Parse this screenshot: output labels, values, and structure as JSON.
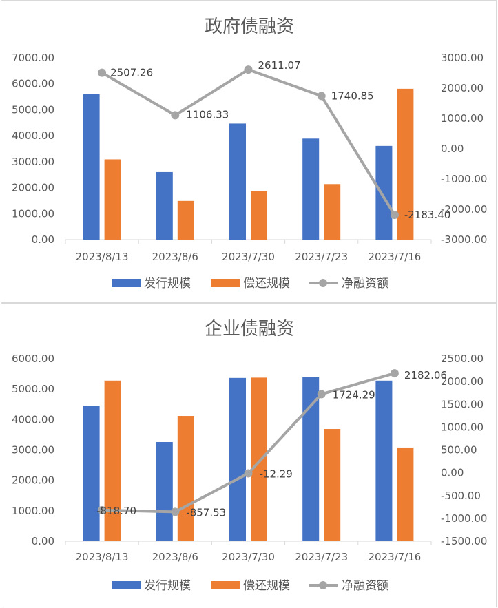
{
  "colors": {
    "issuance": "#4472c4",
    "repayment": "#ed7d31",
    "net": "#a5a5a5",
    "axis": "#d9d9d9",
    "text": "#595959"
  },
  "chart_data": [
    {
      "type": "bar",
      "title": "政府债融资",
      "categories": [
        "2023/8/13",
        "2023/8/6",
        "2023/7/30",
        "2023/7/23",
        "2023/7/16"
      ],
      "series": [
        {
          "name": "发行规模",
          "axis": "left",
          "kind": "bar",
          "values": [
            5600,
            2600,
            4470,
            3890,
            3610
          ]
        },
        {
          "name": "偿还规模",
          "axis": "left",
          "kind": "bar",
          "values": [
            3090,
            1490,
            1860,
            2140,
            5810
          ]
        },
        {
          "name": "净融资额",
          "axis": "right",
          "kind": "line",
          "values": [
            2507.26,
            1106.33,
            2611.07,
            1740.85,
            -2183.4
          ]
        }
      ],
      "line_labels": [
        "2507.26",
        "1106.33",
        "2611.07",
        "1740.85",
        "-2183.40"
      ],
      "ylim_left": [
        0,
        7000
      ],
      "ylim_right": [
        -3000,
        3000
      ],
      "yticks_left": [
        "7000.00",
        "6000.00",
        "5000.00",
        "4000.00",
        "3000.00",
        "2000.00",
        "1000.00",
        "0.00"
      ],
      "yticks_right": [
        "3000.00",
        "2000.00",
        "1000.00",
        "0.00",
        "-1000.00",
        "-2000.00",
        "-3000.00"
      ],
      "legend": [
        "发行规模",
        "偿还规模",
        "净融资额"
      ],
      "legend_position": "bottom",
      "grid": false
    },
    {
      "type": "bar",
      "title": "企业债融资",
      "categories": [
        "2023/8/13",
        "2023/8/6",
        "2023/7/30",
        "2023/7/23",
        "2023/7/16"
      ],
      "series": [
        {
          "name": "发行规模",
          "axis": "left",
          "kind": "bar",
          "values": [
            4460,
            3260,
            5370,
            5410,
            5280
          ]
        },
        {
          "name": "偿还规模",
          "axis": "left",
          "kind": "bar",
          "values": [
            5280,
            4120,
            5380,
            3690,
            3080
          ]
        },
        {
          "name": "净融资额",
          "axis": "right",
          "kind": "line",
          "values": [
            -818.7,
            -857.53,
            -12.29,
            1724.29,
            2182.06
          ]
        }
      ],
      "line_labels": [
        "-818.70",
        "-857.53",
        "-12.29",
        "1724.29",
        "2182.06"
      ],
      "ylim_left": [
        0,
        6000
      ],
      "ylim_right": [
        -1500,
        2500
      ],
      "yticks_left": [
        "6000.00",
        "5000.00",
        "4000.00",
        "3000.00",
        "2000.00",
        "1000.00",
        "0.00"
      ],
      "yticks_right": [
        "2500.00",
        "2000.00",
        "1500.00",
        "1000.00",
        "500.00",
        "0.00",
        "-500.00",
        "-1000.00",
        "-1500.00"
      ],
      "legend": [
        "发行规模",
        "偿还规模",
        "净融资额"
      ],
      "legend_position": "bottom",
      "grid": false
    }
  ]
}
